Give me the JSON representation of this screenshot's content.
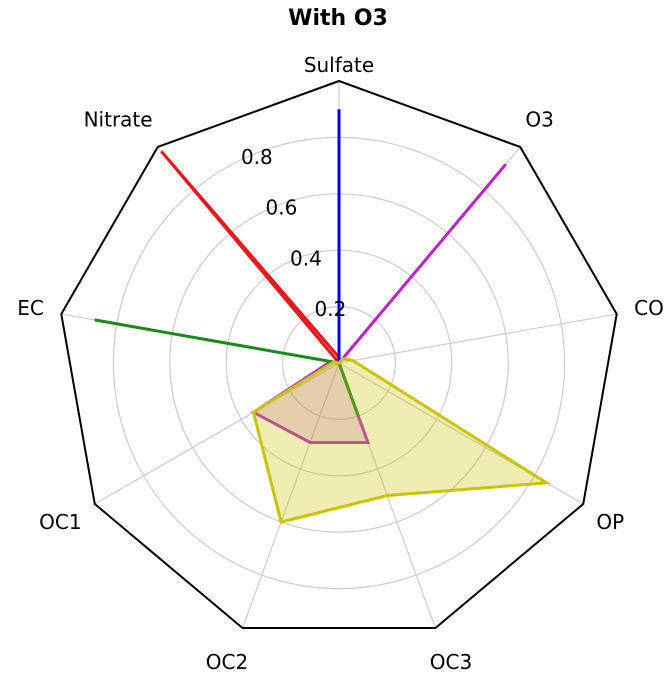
{
  "chart_data": {
    "type": "radar",
    "title": "With O3",
    "axes": [
      "Sulfate",
      "O3",
      "CO",
      "OP",
      "OC3",
      "OC2",
      "OC1",
      "EC",
      "Nitrate"
    ],
    "rlim": [
      0,
      1.0
    ],
    "radial_ticks": [
      0.2,
      0.4,
      0.6,
      0.8
    ],
    "radial_tick_labels": [
      "0.2",
      "0.4",
      "0.6",
      "0.8"
    ],
    "grid": true,
    "series": [
      {
        "color": "#e41a1c",
        "fill_opacity": 0.2,
        "values": [
          0.02,
          0.0,
          0.0,
          0.0,
          0.0,
          0.0,
          0.0,
          0.0,
          0.98
        ]
      },
      {
        "color": "#0000ee",
        "fill_opacity": 0.0,
        "values": [
          0.9,
          0.0,
          0.0,
          0.0,
          0.0,
          0.0,
          0.0,
          0.0,
          0.0
        ]
      },
      {
        "color": "#bb22cc",
        "fill_opacity": 0.2,
        "values": [
          0.0,
          0.92,
          0.0,
          0.0,
          0.3,
          0.3,
          0.35,
          0.03,
          0.0
        ]
      },
      {
        "color": "#1a8a1a",
        "fill_opacity": 0.3,
        "values": [
          0.0,
          0.0,
          0.0,
          0.0,
          0.2,
          0.0,
          0.0,
          0.88,
          0.0
        ]
      },
      {
        "color": "#c9c400",
        "fill_opacity": 0.3,
        "values": [
          0.0,
          0.02,
          0.05,
          0.85,
          0.5,
          0.6,
          0.35,
          0.02,
          0.0
        ]
      }
    ]
  }
}
